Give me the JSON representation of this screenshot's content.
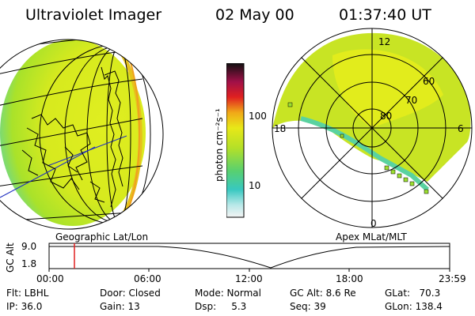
{
  "header": {
    "instrument": "Ultraviolet Imager",
    "date": "02 May 00",
    "time": "01:37:40 UT"
  },
  "colorbar": {
    "unit_label": "photon cm⁻²s⁻¹",
    "ticks": [
      "100",
      "10"
    ]
  },
  "map_labels": {
    "left": "Geographic Lat/Lon",
    "right": "Apex MLat/MLT"
  },
  "polar": {
    "mlt_labels": [
      "12",
      "18",
      "6",
      "0"
    ],
    "mlat_labels": [
      "60",
      "70",
      "80"
    ]
  },
  "altitude_plot": {
    "axis_label": "GC Alt",
    "y_ticks": [
      "9.0",
      "1.8"
    ],
    "time_ticks": [
      "00:00",
      "06:00",
      "12:00",
      "18:00",
      "23:59"
    ]
  },
  "info": {
    "flt": "Flt: LBHL",
    "ip": "IP: 36.0",
    "door": "Door: Closed",
    "gain": "Gain: 13",
    "mode": "Mode: Normal",
    "dsp": "Dsp:     5.3",
    "gcalt": "GC Alt: 8.6 Re",
    "seq": "Seq: 39",
    "glat": "GLat:   70.3",
    "glon": "GLon: 138.4"
  }
}
